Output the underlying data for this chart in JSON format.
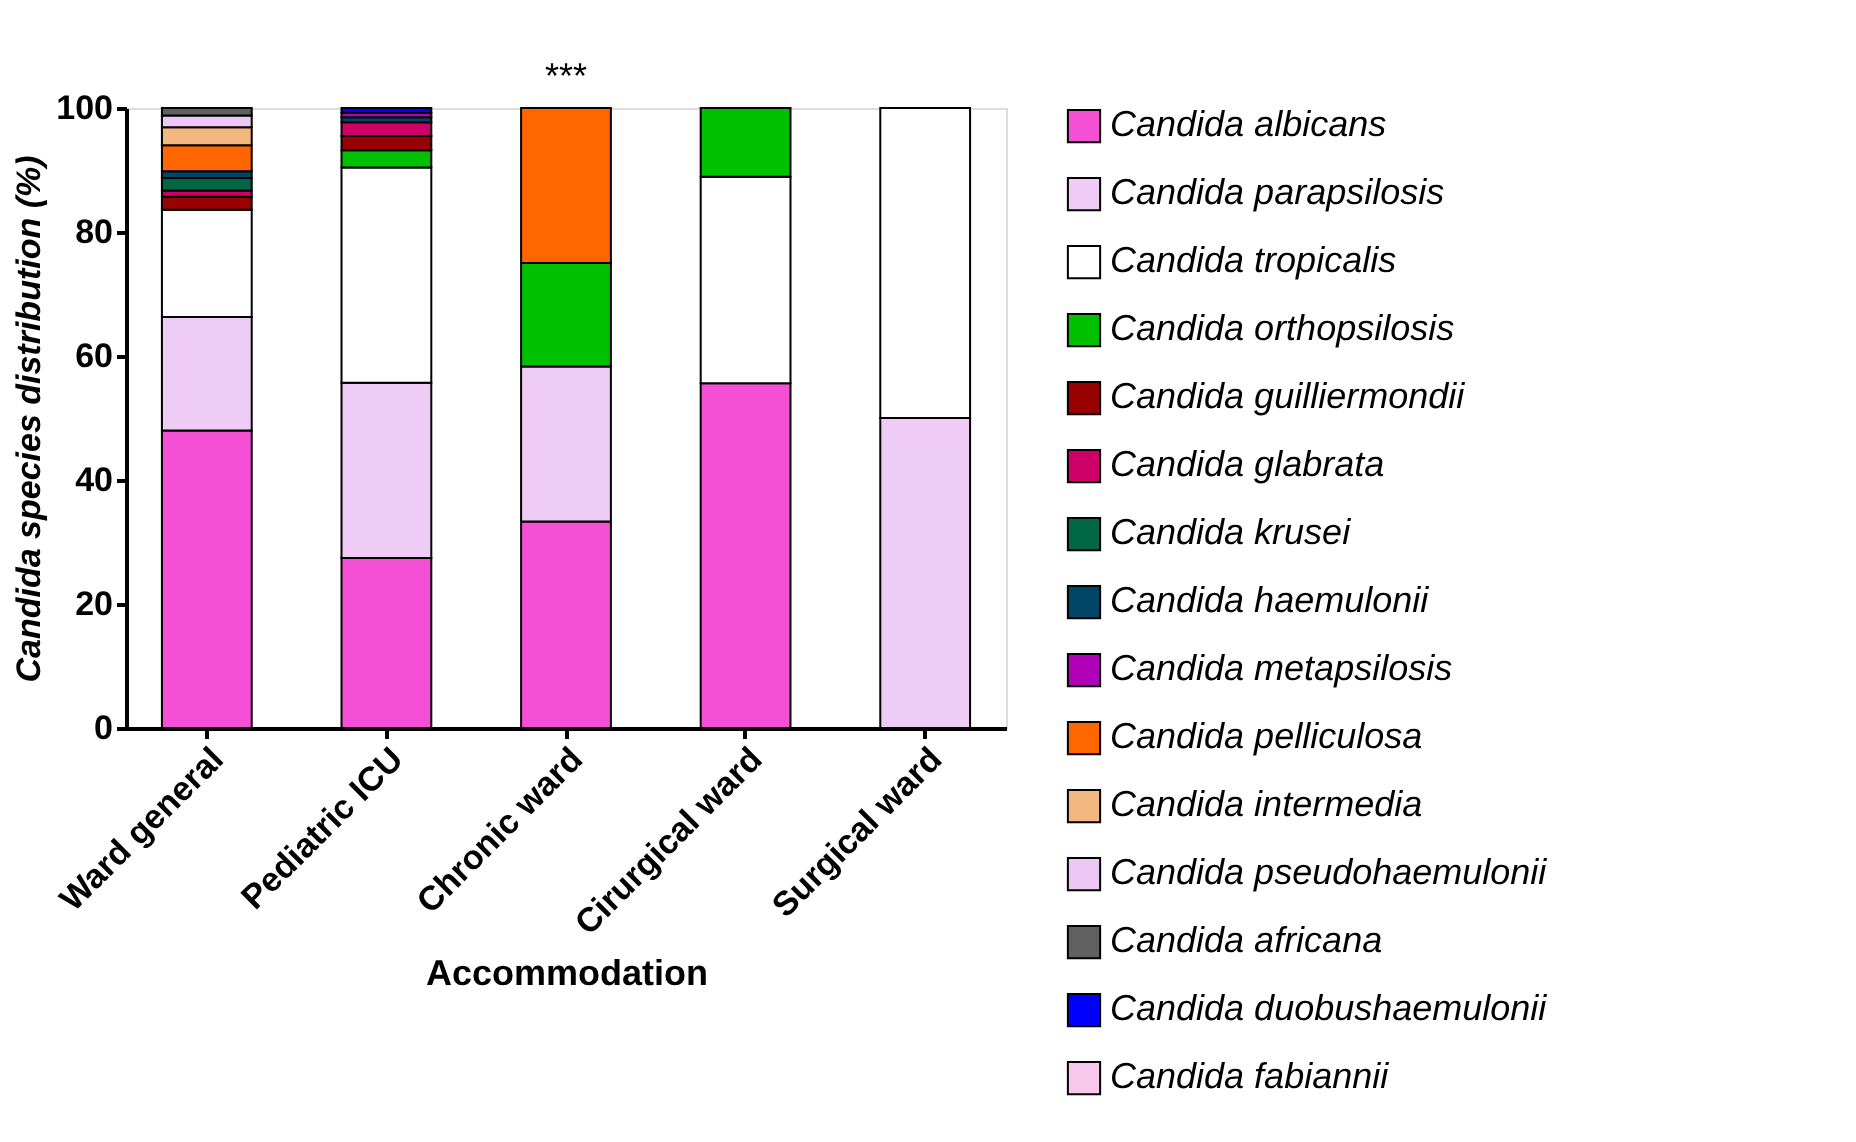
{
  "chart_data": {
    "type": "bar",
    "stacked": true,
    "xlabel": "Accommodation",
    "ylabel": "Candida species distribution (%)",
    "categories": [
      "Ward general",
      "Pediatric ICU",
      "Chronic ward",
      "Cirurgical ward",
      "Surgical ward"
    ],
    "ylim": [
      0,
      100
    ],
    "yticks": [
      0,
      20,
      40,
      60,
      80,
      100
    ],
    "grid": false,
    "legend": "right",
    "annotations": [
      "***"
    ],
    "series": [
      {
        "name": "Candida albicans",
        "color": "#f54fd6",
        "values": [
          48,
          27.4,
          33.3,
          55.6,
          null
        ]
      },
      {
        "name": "Candida parapsilosis",
        "color": "#eeccf5",
        "values": [
          18.3,
          28.3,
          25,
          null,
          50
        ]
      },
      {
        "name": "Candida tropicalis",
        "color": "#ffffff",
        "values": [
          17.3,
          34.7,
          null,
          33.3,
          50
        ]
      },
      {
        "name": "Candida orthopsilosis",
        "color": "#00c000",
        "values": [
          null,
          2.8,
          16.7,
          11.1,
          null
        ]
      },
      {
        "name": "Candida guilliermondii",
        "color": "#990000",
        "values": [
          2.1,
          2.3,
          null,
          null,
          null
        ]
      },
      {
        "name": "Candida glabrata",
        "color": "#cc0066",
        "values": [
          1.0,
          2.2,
          null,
          null,
          null
        ]
      },
      {
        "name": "Candida krusei",
        "color": "#006644",
        "values": [
          2.0,
          null,
          null,
          null,
          null
        ]
      },
      {
        "name": "Candida haemulonii",
        "color": "#004466",
        "values": [
          1.1,
          0.8,
          null,
          null,
          null
        ]
      },
      {
        "name": "Candida metapsilosis",
        "color": "#b000b8",
        "values": [
          null,
          0.7,
          null,
          null,
          null
        ]
      },
      {
        "name": "Candida pelliculosa",
        "color": "#ff6600",
        "values": [
          4.2,
          null,
          25,
          null,
          null
        ]
      },
      {
        "name": "Candida intermedia",
        "color": "#f2b880",
        "values": [
          2.9,
          null,
          null,
          null,
          null
        ]
      },
      {
        "name": "Candida pseudohaemulonii",
        "color": "#eec8f5",
        "values": [
          1.9,
          null,
          null,
          null,
          null
        ]
      },
      {
        "name": "Candida africana",
        "color": "#606060",
        "values": [
          1.2,
          null,
          null,
          null,
          null
        ]
      },
      {
        "name": "Candida duobushaemulonii",
        "color": "#0000ff",
        "values": [
          null,
          0.8,
          null,
          null,
          null
        ]
      },
      {
        "name": "Candida fabiannii",
        "color": "#f8c8ec",
        "values": [
          null,
          null,
          null,
          null,
          null
        ]
      }
    ]
  }
}
